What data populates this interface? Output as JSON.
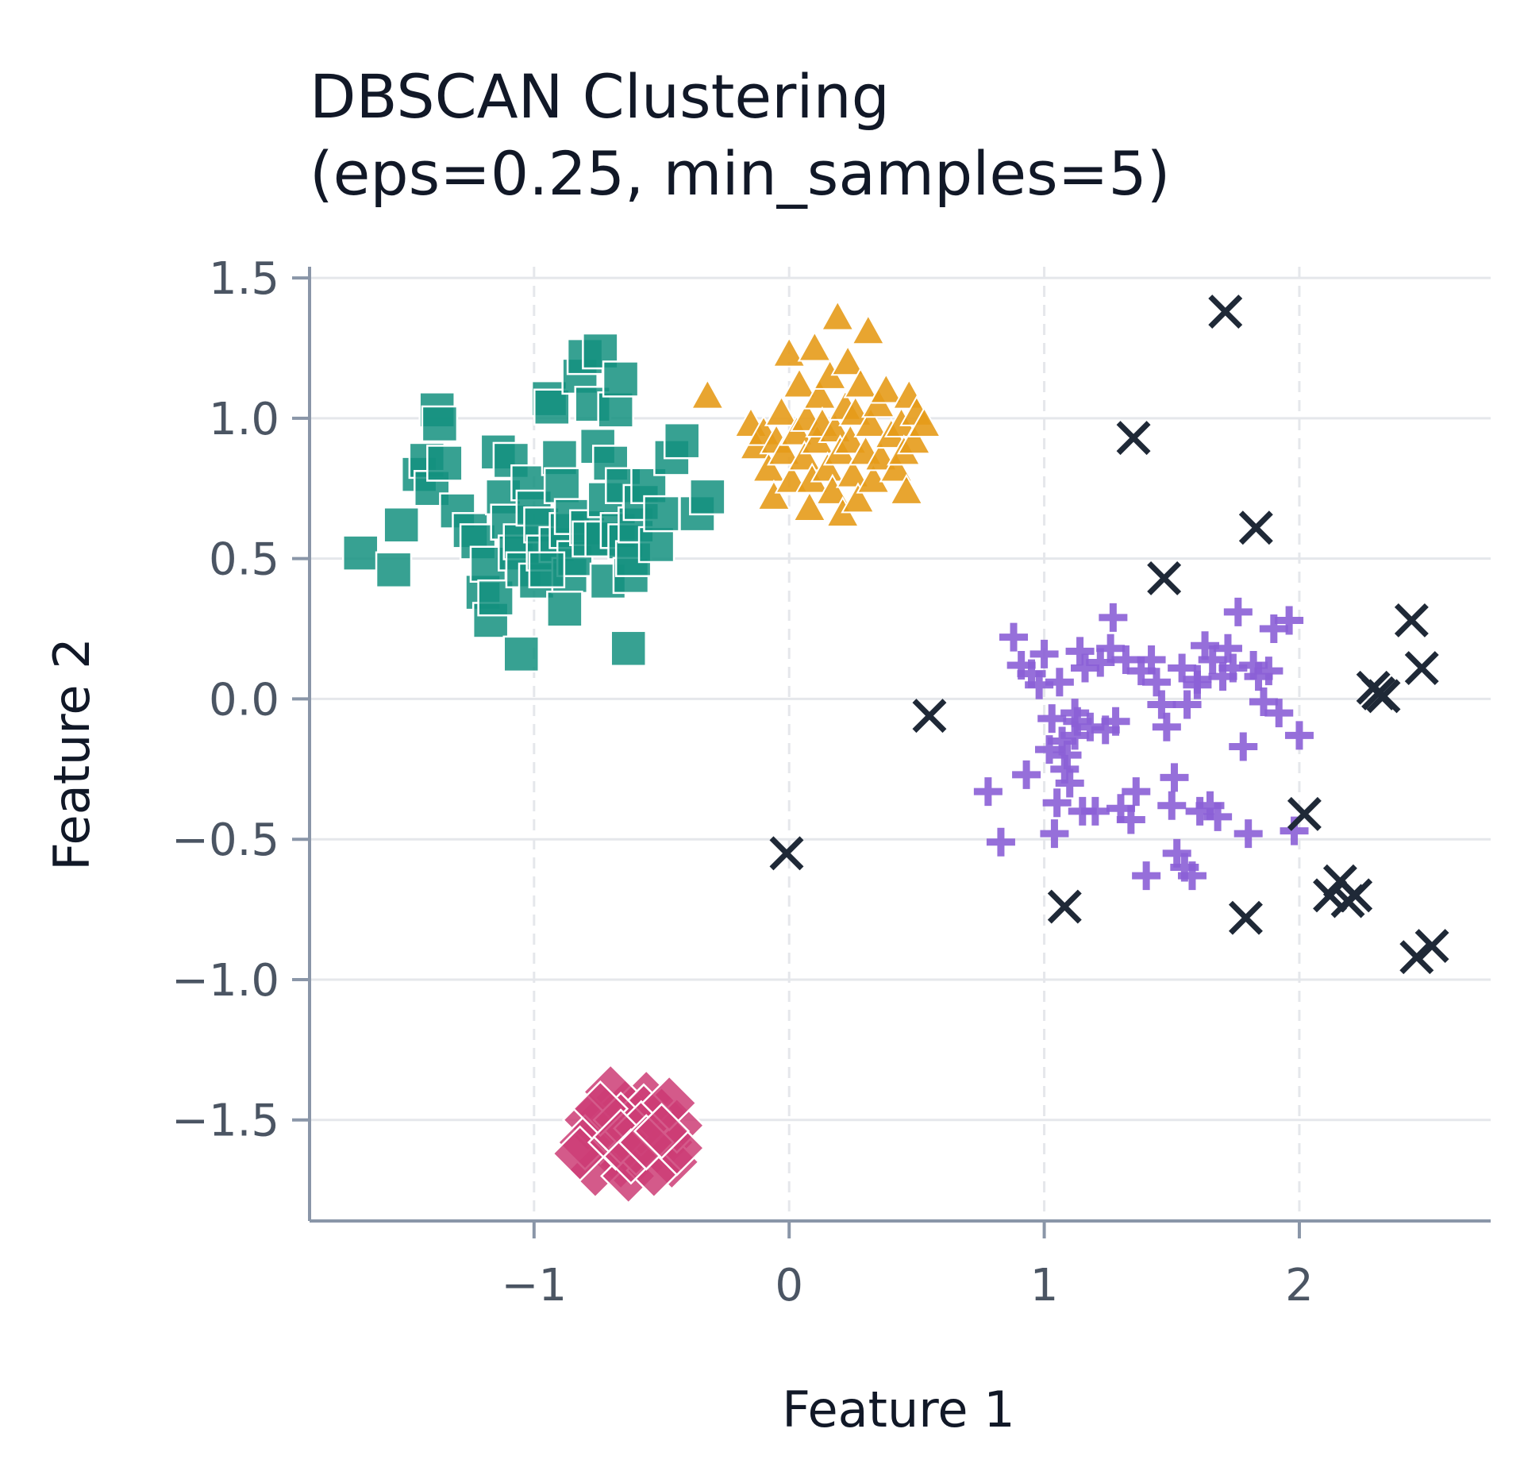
{
  "chart_data": {
    "type": "scatter",
    "title_lines": [
      "DBSCAN Clustering",
      "(eps=0.25, min_samples=5)"
    ],
    "xlabel": "Feature 1",
    "ylabel": "Feature 2",
    "xlim": [
      -1.88,
      2.75
    ],
    "ylim": [
      -1.86,
      1.54
    ],
    "xticks": [
      -1,
      0,
      1,
      2
    ],
    "xtick_labels": [
      "−1",
      "0",
      "1",
      "2"
    ],
    "yticks": [
      -1.5,
      -1.0,
      -0.5,
      0.0,
      0.5,
      1.0,
      1.5
    ],
    "ytick_labels": [
      "−1.5",
      "−1.0",
      "−0.5",
      "0.0",
      "0.5",
      "1.0",
      "1.5"
    ],
    "grid": true,
    "legend": false,
    "series": [
      {
        "marker": "square",
        "color": "#14917f",
        "points": [
          [
            -1.68,
            0.52
          ],
          [
            -1.55,
            0.46
          ],
          [
            -1.52,
            0.62
          ],
          [
            -1.45,
            0.8
          ],
          [
            -1.42,
            0.85
          ],
          [
            -1.4,
            0.75
          ],
          [
            -1.38,
            1.03
          ],
          [
            -1.37,
            0.98
          ],
          [
            -1.35,
            0.84
          ],
          [
            -1.3,
            0.67
          ],
          [
            -1.25,
            0.6
          ],
          [
            -1.22,
            0.56
          ],
          [
            -1.2,
            0.38
          ],
          [
            -1.18,
            0.48
          ],
          [
            -1.17,
            0.28
          ],
          [
            -1.15,
            0.36
          ],
          [
            -1.14,
            0.88
          ],
          [
            -1.12,
            0.72
          ],
          [
            -1.1,
            0.63
          ],
          [
            -1.09,
            0.85
          ],
          [
            -1.07,
            0.52
          ],
          [
            -1.05,
            0.56
          ],
          [
            -1.04,
            0.46
          ],
          [
            -1.02,
            0.77
          ],
          [
            -1.0,
            0.68
          ],
          [
            -0.99,
            0.42
          ],
          [
            -0.97,
            0.62
          ],
          [
            -0.96,
            0.52
          ],
          [
            -0.94,
            1.07
          ],
          [
            -0.93,
            1.04
          ],
          [
            -0.91,
            0.55
          ],
          [
            -0.9,
            0.86
          ],
          [
            -0.89,
            0.76
          ],
          [
            -0.87,
            0.6
          ],
          [
            -0.86,
            0.44
          ],
          [
            -0.85,
            0.65
          ],
          [
            -0.84,
            0.5
          ],
          [
            -0.82,
            1.15
          ],
          [
            -0.8,
            1.22
          ],
          [
            -0.79,
            0.61
          ],
          [
            -0.78,
            0.57
          ],
          [
            -0.77,
            1.05
          ],
          [
            -0.75,
            0.9
          ],
          [
            -0.74,
            1.24
          ],
          [
            -0.73,
            0.57
          ],
          [
            -0.72,
            0.71
          ],
          [
            -0.71,
            0.42
          ],
          [
            -0.7,
            0.84
          ],
          [
            -0.68,
            1.03
          ],
          [
            -0.67,
            0.6
          ],
          [
            -0.66,
            1.14
          ],
          [
            -0.65,
            0.76
          ],
          [
            -0.64,
            0.56
          ],
          [
            -0.63,
            0.18
          ],
          [
            -0.62,
            0.44
          ],
          [
            -0.61,
            0.5
          ],
          [
            -0.6,
            0.62
          ],
          [
            -0.58,
            0.7
          ],
          [
            -0.55,
            0.76
          ],
          [
            -0.52,
            0.55
          ],
          [
            -0.5,
            0.66
          ],
          [
            -0.46,
            0.86
          ],
          [
            -0.42,
            0.92
          ],
          [
            -0.36,
            0.66
          ],
          [
            -0.32,
            0.72
          ],
          [
            -1.05,
            0.16
          ],
          [
            -0.88,
            0.32
          ],
          [
            -0.95,
            0.46
          ]
        ]
      },
      {
        "marker": "triangle",
        "color": "#e69b1a",
        "points": [
          [
            -0.32,
            1.08
          ],
          [
            -0.15,
            0.98
          ],
          [
            -0.13,
            0.9
          ],
          [
            -0.1,
            0.95
          ],
          [
            -0.08,
            0.82
          ],
          [
            -0.06,
            0.72
          ],
          [
            -0.05,
            0.92
          ],
          [
            -0.03,
            1.02
          ],
          [
            -0.02,
            0.88
          ],
          [
            0.0,
            1.23
          ],
          [
            0.01,
            0.78
          ],
          [
            0.03,
            0.95
          ],
          [
            0.04,
            1.12
          ],
          [
            0.06,
            0.86
          ],
          [
            0.07,
            1.0
          ],
          [
            0.08,
            0.68
          ],
          [
            0.09,
            0.78
          ],
          [
            0.1,
            1.25
          ],
          [
            0.11,
            0.92
          ],
          [
            0.12,
            1.08
          ],
          [
            0.13,
            0.98
          ],
          [
            0.15,
            0.82
          ],
          [
            0.16,
            1.15
          ],
          [
            0.17,
            0.74
          ],
          [
            0.18,
            0.96
          ],
          [
            0.19,
            1.36
          ],
          [
            0.2,
            0.88
          ],
          [
            0.21,
            0.66
          ],
          [
            0.22,
            1.04
          ],
          [
            0.23,
            1.2
          ],
          [
            0.24,
            0.92
          ],
          [
            0.25,
            0.8
          ],
          [
            0.26,
            1.02
          ],
          [
            0.27,
            0.71
          ],
          [
            0.28,
            1.12
          ],
          [
            0.3,
            0.88
          ],
          [
            0.31,
            1.31
          ],
          [
            0.32,
            0.98
          ],
          [
            0.33,
            0.78
          ],
          [
            0.35,
            1.05
          ],
          [
            0.36,
            0.86
          ],
          [
            0.38,
            1.1
          ],
          [
            0.4,
            0.94
          ],
          [
            0.42,
            0.82
          ],
          [
            0.44,
            0.98
          ],
          [
            0.45,
            0.88
          ],
          [
            0.46,
            0.74
          ],
          [
            0.47,
            1.08
          ],
          [
            0.49,
            0.92
          ],
          [
            0.5,
            1.02
          ],
          [
            0.53,
            0.98
          ]
        ]
      },
      {
        "marker": "plus",
        "color": "#8b5fd6",
        "points": [
          [
            0.78,
            -0.33
          ],
          [
            0.83,
            -0.51
          ],
          [
            0.88,
            0.22
          ],
          [
            0.91,
            0.12
          ],
          [
            0.93,
            -0.27
          ],
          [
            0.95,
            0.09
          ],
          [
            0.98,
            0.05
          ],
          [
            1.0,
            0.16
          ],
          [
            1.02,
            -0.18
          ],
          [
            1.03,
            -0.07
          ],
          [
            1.04,
            -0.48
          ],
          [
            1.05,
            -0.37
          ],
          [
            1.06,
            0.06
          ],
          [
            1.07,
            -0.15
          ],
          [
            1.08,
            -0.25
          ],
          [
            1.09,
            -0.2
          ],
          [
            1.1,
            -0.3
          ],
          [
            1.12,
            -0.05
          ],
          [
            1.13,
            -0.08
          ],
          [
            1.14,
            0.17
          ],
          [
            1.15,
            -0.4
          ],
          [
            1.16,
            0.11
          ],
          [
            1.18,
            -0.1
          ],
          [
            1.2,
            -0.4
          ],
          [
            1.22,
            0.13
          ],
          [
            1.24,
            -0.11
          ],
          [
            1.26,
            0.18
          ],
          [
            1.28,
            -0.08
          ],
          [
            1.3,
            -0.39
          ],
          [
            1.32,
            0.14
          ],
          [
            1.34,
            -0.43
          ],
          [
            1.36,
            -0.33
          ],
          [
            1.38,
            0.1
          ],
          [
            1.4,
            -0.63
          ],
          [
            1.42,
            0.14
          ],
          [
            1.44,
            0.06
          ],
          [
            1.46,
            -0.02
          ],
          [
            1.48,
            -0.1
          ],
          [
            1.5,
            -0.38
          ],
          [
            1.51,
            -0.28
          ],
          [
            1.52,
            -0.55
          ],
          [
            1.54,
            0.11
          ],
          [
            1.55,
            -0.6
          ],
          [
            1.56,
            -0.02
          ],
          [
            1.58,
            -0.63
          ],
          [
            1.6,
            0.07
          ],
          [
            1.61,
            -0.4
          ],
          [
            1.63,
            0.19
          ],
          [
            1.65,
            -0.38
          ],
          [
            1.66,
            0.14
          ],
          [
            1.68,
            -0.42
          ],
          [
            1.7,
            0.08
          ],
          [
            1.72,
            0.18
          ],
          [
            1.74,
            0.11
          ],
          [
            1.76,
            0.31
          ],
          [
            1.78,
            -0.17
          ],
          [
            1.8,
            -0.48
          ],
          [
            1.82,
            0.12
          ],
          [
            1.84,
            0.08
          ],
          [
            1.86,
            -0.01
          ],
          [
            1.88,
            0.1
          ],
          [
            1.9,
            0.25
          ],
          [
            1.92,
            -0.05
          ],
          [
            1.96,
            0.28
          ],
          [
            1.98,
            -0.47
          ],
          [
            2.0,
            -0.13
          ],
          [
            1.27,
            0.29
          ],
          [
            1.6,
            0.05
          ],
          [
            1.12,
            -0.13
          ]
        ]
      },
      {
        "marker": "x",
        "color": "#1f2937",
        "points": [
          [
            0.55,
            -0.06
          ],
          [
            -0.01,
            -0.55
          ],
          [
            1.35,
            0.93
          ],
          [
            1.47,
            0.43
          ],
          [
            1.71,
            1.38
          ],
          [
            1.83,
            0.61
          ],
          [
            1.08,
            -0.74
          ],
          [
            1.79,
            -0.78
          ],
          [
            2.02,
            -0.41
          ],
          [
            2.12,
            -0.7
          ],
          [
            2.16,
            -0.65
          ],
          [
            2.19,
            -0.72
          ],
          [
            2.22,
            -0.7
          ],
          [
            2.29,
            0.04
          ],
          [
            2.31,
            0.02
          ],
          [
            2.33,
            0.01
          ],
          [
            2.44,
            0.28
          ],
          [
            2.46,
            -0.92
          ],
          [
            2.48,
            0.11
          ],
          [
            2.52,
            -0.88
          ]
        ]
      }
    ]
  }
}
